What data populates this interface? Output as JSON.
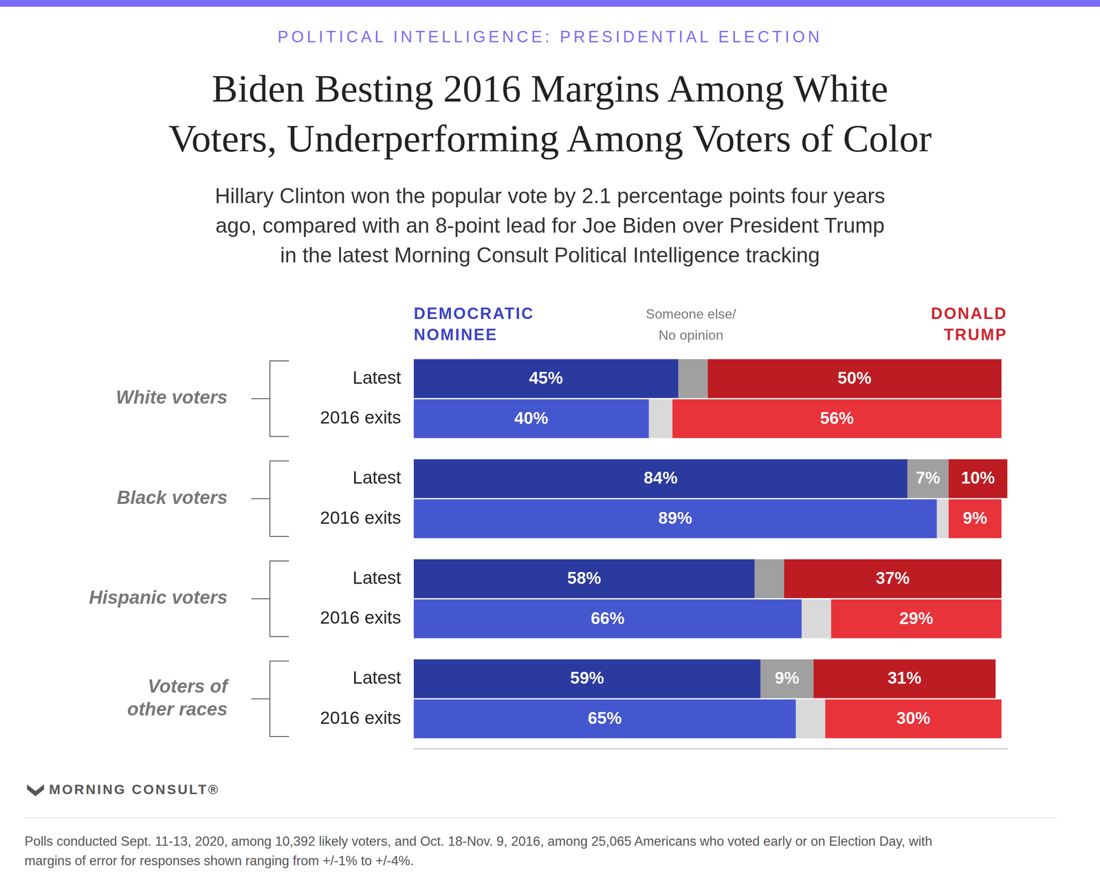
{
  "chart_data": {
    "type": "bar",
    "supertitle": "POLITICAL INTELLIGENCE: PRESIDENTIAL ELECTION",
    "title": "Biden Besting 2016 Margins Among White\nVoters, Underperforming Among Voters of Color",
    "subtitle": "Hillary Clinton won the popular vote by 2.1 percentage points four years\nago, compared with an 8-point lead for Joe Biden over President Trump\nin the latest Morning Consult Political Intelligence tracking",
    "source": "MORNING CONSULT®",
    "note": "Polls conducted Sept. 11-13, 2020, among 10,392 likely voters, and Oct. 18-Nov. 9, 2016, among 25,065 Americans who voted early or on Election Day, with\nmargins of error for responses shown ranging from +/-1% to +/-4%.",
    "orientation": "horizontal",
    "stacked": true,
    "data_labels": true,
    "tick_labels": false,
    "grid": false,
    "legend": "top",
    "xlim": [
      0,
      101
    ],
    "categories": [
      "White voters",
      "Black voters",
      "Hispanic voters",
      "Voters of\nother races"
    ],
    "subcategories": [
      "Latest",
      "2016 exits"
    ],
    "series": [
      {
        "name": "DEMOCRATIC\nNOMINEE",
        "color": "#3a44c4",
        "colors": [
          "#2b3a9e",
          "#4557cf"
        ],
        "values": [
          [
            45,
            40
          ],
          [
            84,
            89
          ],
          [
            58,
            66
          ],
          [
            59,
            65
          ]
        ],
        "value_labels": [
          [
            "45%",
            "40%"
          ],
          [
            "84%",
            "89%"
          ],
          [
            "58%",
            "66%"
          ],
          [
            "59%",
            "65%"
          ]
        ]
      },
      {
        "name": "Someone else/\nNo opinion",
        "color": "#777777",
        "colors": [
          "#a0a0a0",
          "#d9d9d9"
        ],
        "values": [
          [
            5,
            4
          ],
          [
            7,
            2
          ],
          [
            5,
            5
          ],
          [
            9,
            5
          ]
        ],
        "value_labels": [
          [
            null,
            null
          ],
          [
            "7%",
            null
          ],
          [
            null,
            null
          ],
          [
            "9%",
            null
          ]
        ]
      },
      {
        "name": "DONALD\nTRUMP",
        "color": "#d0242b",
        "colors": [
          "#bd1c22",
          "#e8333a"
        ],
        "values": [
          [
            50,
            56
          ],
          [
            10,
            9
          ],
          [
            37,
            29
          ],
          [
            31,
            30
          ]
        ],
        "value_labels": [
          [
            "50%",
            "56%"
          ],
          [
            "10%",
            "9%"
          ],
          [
            "37%",
            "29%"
          ],
          [
            "31%",
            "30%"
          ]
        ]
      }
    ]
  }
}
